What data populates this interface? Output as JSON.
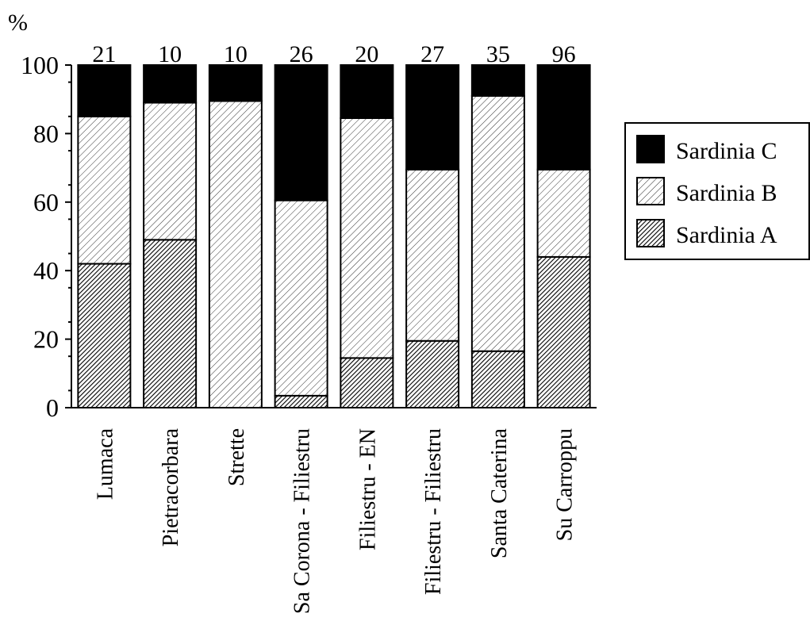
{
  "chart_data": {
    "type": "bar",
    "stacked": true,
    "ylabel": "%",
    "ylim": [
      0,
      100
    ],
    "yticks": [
      0,
      20,
      40,
      60,
      80,
      100
    ],
    "grid": false,
    "legend_position": "right",
    "categories": [
      "Lumaca",
      "Pietracorbara",
      "Strette",
      "Sa Corona - Filiestru",
      "Filiestru - EN",
      "Filiestru - Filiestru",
      "Santa Caterina",
      "Su Carroppu"
    ],
    "sample_sizes": [
      "21",
      "10",
      "10",
      "26",
      "20",
      "27",
      "35",
      "96"
    ],
    "series": [
      {
        "name": "Sardinia A",
        "pattern": "dense-hatch",
        "values": [
          42,
          49,
          0,
          3.5,
          14.5,
          19.5,
          16.5,
          44
        ]
      },
      {
        "name": "Sardinia B",
        "pattern": "light-hatch",
        "values": [
          43,
          40,
          89.5,
          57,
          70,
          50,
          74.5,
          25.5
        ]
      },
      {
        "name": "Sardinia C",
        "pattern": "solid",
        "color": "#000000",
        "values": [
          15,
          11,
          10.5,
          39.5,
          15.5,
          30.5,
          9,
          30.5
        ]
      }
    ],
    "legend_order": [
      "Sardinia C",
      "Sardinia B",
      "Sardinia A"
    ]
  }
}
